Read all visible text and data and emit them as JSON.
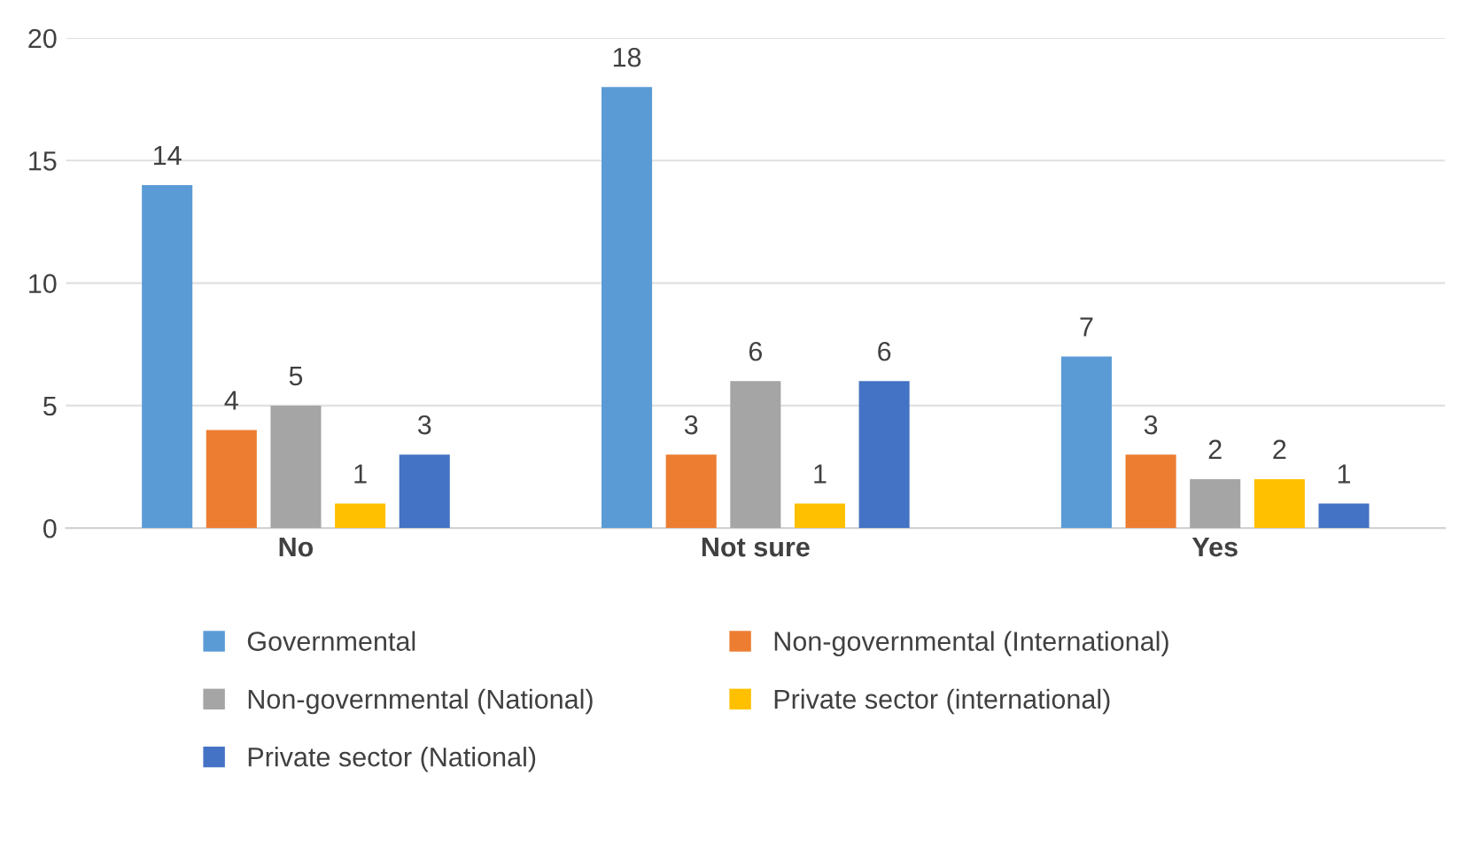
{
  "chart_data": {
    "type": "bar",
    "categories": [
      "No",
      "Not sure",
      "Yes"
    ],
    "series": [
      {
        "name": "Governmental",
        "color": "#5b9bd5",
        "values": [
          14,
          18,
          7
        ]
      },
      {
        "name": "Non-governmental (International)",
        "color": "#ed7d31",
        "values": [
          4,
          3,
          3
        ]
      },
      {
        "name": "Non-governmental (National)",
        "color": "#a5a5a5",
        "values": [
          5,
          6,
          2
        ]
      },
      {
        "name": "Private sector (international)",
        "color": "#ffc000",
        "values": [
          1,
          1,
          2
        ]
      },
      {
        "name": "Private sector (National)",
        "color": "#4472c4",
        "values": [
          3,
          6,
          1
        ]
      }
    ],
    "ylim": [
      0,
      20
    ],
    "yticks": [
      0,
      5,
      10,
      15,
      20
    ],
    "grid": "y",
    "legend": "bottom",
    "data_labels": true
  }
}
